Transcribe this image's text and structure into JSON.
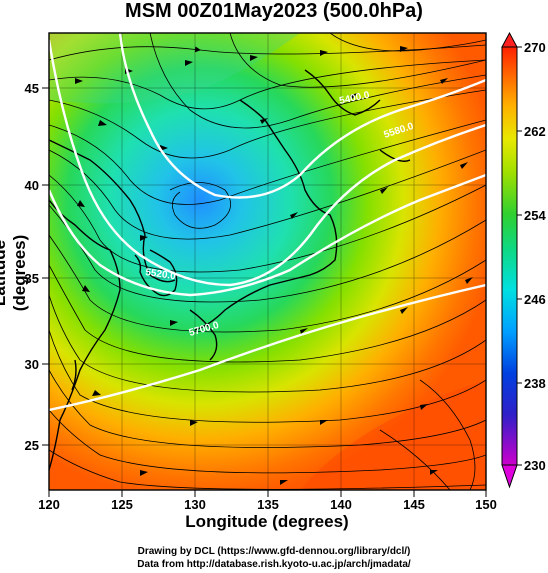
{
  "title": "MSM 00Z01May2023 (500.0hPa)",
  "axes": {
    "xlabel": "Longitude (degrees)",
    "ylabel": "Latitude  (degrees)",
    "xticks": [
      "120",
      "125",
      "130",
      "135",
      "140",
      "145",
      "150"
    ],
    "yticks": [
      "45",
      "40",
      "35",
      "30",
      "25"
    ],
    "lon_range": [
      120,
      150
    ],
    "lat_range": [
      22.4,
      47.6
    ]
  },
  "colorbar": {
    "ticks": [
      "270",
      "262",
      "254",
      "246",
      "238",
      "230"
    ],
    "range": [
      230,
      270
    ],
    "colors": [
      "#cc00cc",
      "#0000cc",
      "#0090ff",
      "#00e0e0",
      "#00d070",
      "#60e000",
      "#d8e800",
      "#ff9a00",
      "#ff4400",
      "#ff0000"
    ]
  },
  "contours": {
    "labels": [
      "5400.0",
      "5520.0",
      "5580.0",
      "5700.0"
    ],
    "color": "#ffffff"
  },
  "credits": {
    "line1": "Drawing by DCL (https://www.gfd-dennou.org/library/dcl/)",
    "line2": "Data from http://database.rish.kyoto-u.ac.jp/arch/jmadata/"
  }
}
